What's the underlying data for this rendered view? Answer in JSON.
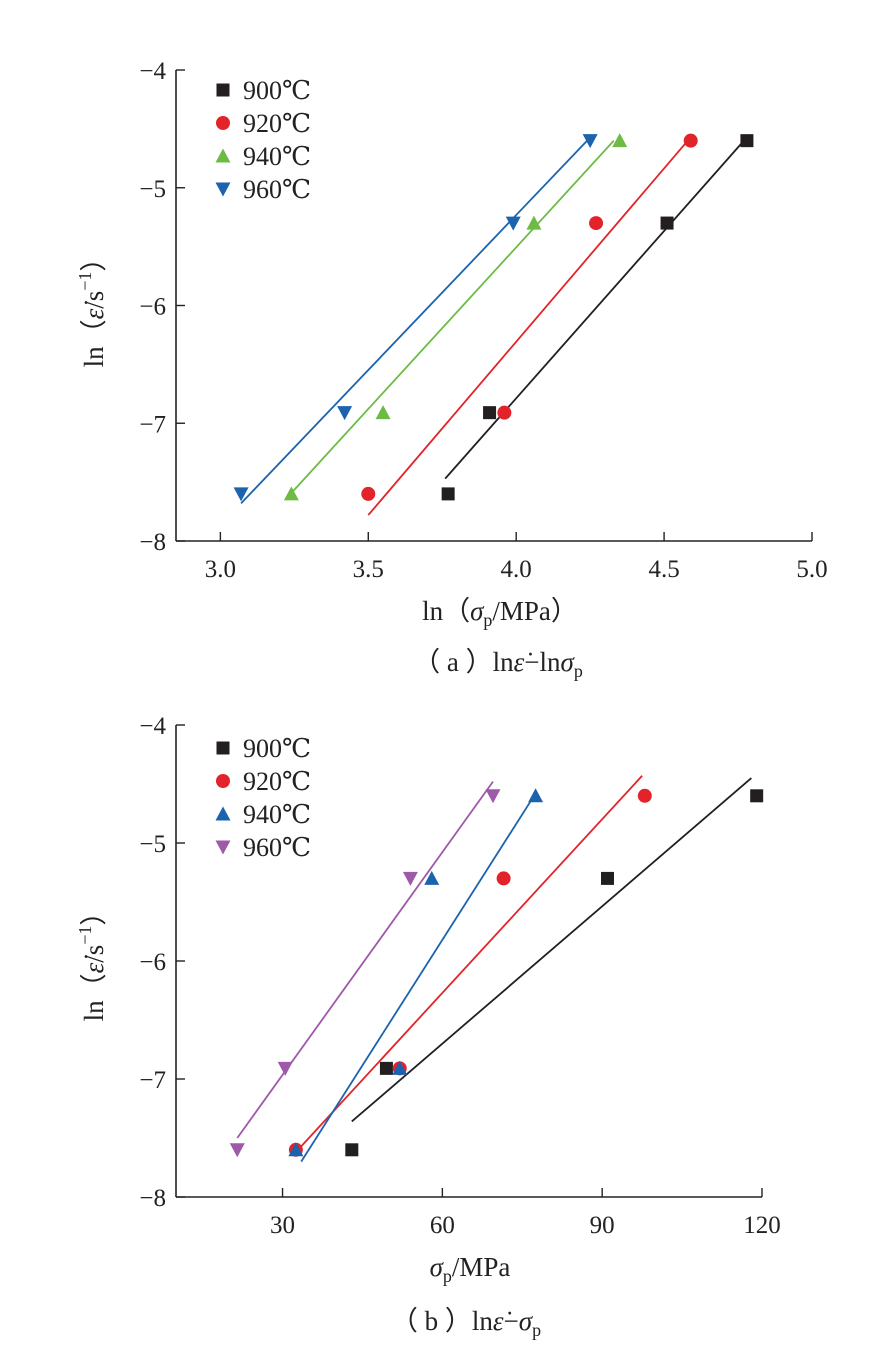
{
  "chart_data": [
    {
      "type": "scatter",
      "panel": "a",
      "caption_parts": [
        "（ a ）",
        "ln",
        "ε̇",
        "−ln",
        "σ",
        "p"
      ],
      "xlabel_parts": [
        "ln（",
        "σ",
        "p",
        "/MPa）"
      ],
      "ylabel_parts": [
        "ln（",
        "ε̇",
        "/s",
        "−1",
        "）"
      ],
      "xlim": [
        2.85,
        5.0
      ],
      "ylim": [
        -8,
        -4
      ],
      "x_ticks": [
        3.0,
        3.5,
        4.0,
        4.5,
        5.0
      ],
      "x_tick_labels": [
        "3.0",
        "3.5",
        "4.0",
        "4.5",
        "5.0"
      ],
      "y_ticks": [
        -8,
        -7,
        -6,
        -5,
        -4
      ],
      "y_tick_labels": [
        "−8",
        "−7",
        "−6",
        "−5",
        "−4"
      ],
      "legend_position": "top-left",
      "series": [
        {
          "name": "900℃",
          "marker": "square",
          "color": "#231f20",
          "x": [
            3.77,
            3.91,
            4.51,
            4.78
          ],
          "y": [
            -7.6,
            -6.91,
            -5.3,
            -4.6
          ],
          "fit": [
            [
              3.76,
              -7.47
            ],
            [
              4.77,
              -4.6
            ]
          ]
        },
        {
          "name": "920℃",
          "marker": "circle",
          "color": "#e2242a",
          "x": [
            3.5,
            3.96,
            4.27,
            4.59
          ],
          "y": [
            -7.6,
            -6.91,
            -5.3,
            -4.6
          ],
          "fit": [
            [
              3.5,
              -7.78
            ],
            [
              4.58,
              -4.6
            ]
          ]
        },
        {
          "name": "940℃",
          "marker": "triangle-up",
          "color": "#6dbb45",
          "x": [
            3.24,
            3.55,
            4.06,
            4.35
          ],
          "y": [
            -7.6,
            -6.91,
            -5.3,
            -4.6
          ],
          "fit": [
            [
              3.23,
              -7.62
            ],
            [
              4.33,
              -4.6
            ]
          ]
        },
        {
          "name": "960℃",
          "marker": "triangle-down",
          "color": "#1b63ad",
          "x": [
            3.07,
            3.42,
            3.99,
            4.25
          ],
          "y": [
            -7.6,
            -6.91,
            -5.3,
            -4.6
          ],
          "fit": [
            [
              3.07,
              -7.68
            ],
            [
              4.24,
              -4.6
            ]
          ]
        }
      ]
    },
    {
      "type": "scatter",
      "panel": "b",
      "caption_parts": [
        "（ b ）",
        "ln",
        "ε̇",
        "−",
        "σ",
        "p"
      ],
      "xlabel_parts": [
        "",
        "σ",
        "p",
        "/MPa"
      ],
      "ylabel_parts": [
        "ln（",
        "ε̇",
        "/s",
        "−1",
        "）"
      ],
      "xlim": [
        10,
        120
      ],
      "ylim": [
        -8,
        -4
      ],
      "x_ticks": [
        30,
        60,
        90,
        120
      ],
      "x_tick_labels": [
        "30",
        "60",
        "90",
        "120"
      ],
      "y_ticks": [
        -8,
        -7,
        -6,
        -5,
        -4
      ],
      "y_tick_labels": [
        "−8",
        "−7",
        "−6",
        "−5",
        "−4"
      ],
      "legend_position": "top-left",
      "series": [
        {
          "name": "900℃",
          "marker": "square",
          "color": "#231f20",
          "x": [
            43,
            49.5,
            91,
            119
          ],
          "y": [
            -7.6,
            -6.91,
            -5.3,
            -4.6
          ],
          "fit": [
            [
              43,
              -7.36
            ],
            [
              118,
              -4.45
            ]
          ]
        },
        {
          "name": "920℃",
          "marker": "circle",
          "color": "#e2242a",
          "x": [
            32.5,
            52,
            71.5,
            98
          ],
          "y": [
            -7.6,
            -6.91,
            -5.3,
            -4.6
          ],
          "fit": [
            [
              32.5,
              -7.62
            ],
            [
              97.5,
              -4.43
            ]
          ]
        },
        {
          "name": "940℃",
          "marker": "triangle-up",
          "color": "#1b63ad",
          "x": [
            32.5,
            52,
            58,
            77.5
          ],
          "y": [
            -7.6,
            -6.91,
            -5.3,
            -4.6
          ],
          "fit": [
            [
              33.5,
              -7.7
            ],
            [
              77.5,
              -4.58
            ]
          ]
        },
        {
          "name": "960℃",
          "marker": "triangle-down",
          "color": "#9e59a8",
          "x": [
            21.5,
            30.5,
            54,
            69.5
          ],
          "y": [
            -7.6,
            -6.91,
            -5.3,
            -4.6
          ],
          "fit": [
            [
              21.5,
              -7.5
            ],
            [
              69.5,
              -4.48
            ]
          ]
        }
      ]
    }
  ]
}
